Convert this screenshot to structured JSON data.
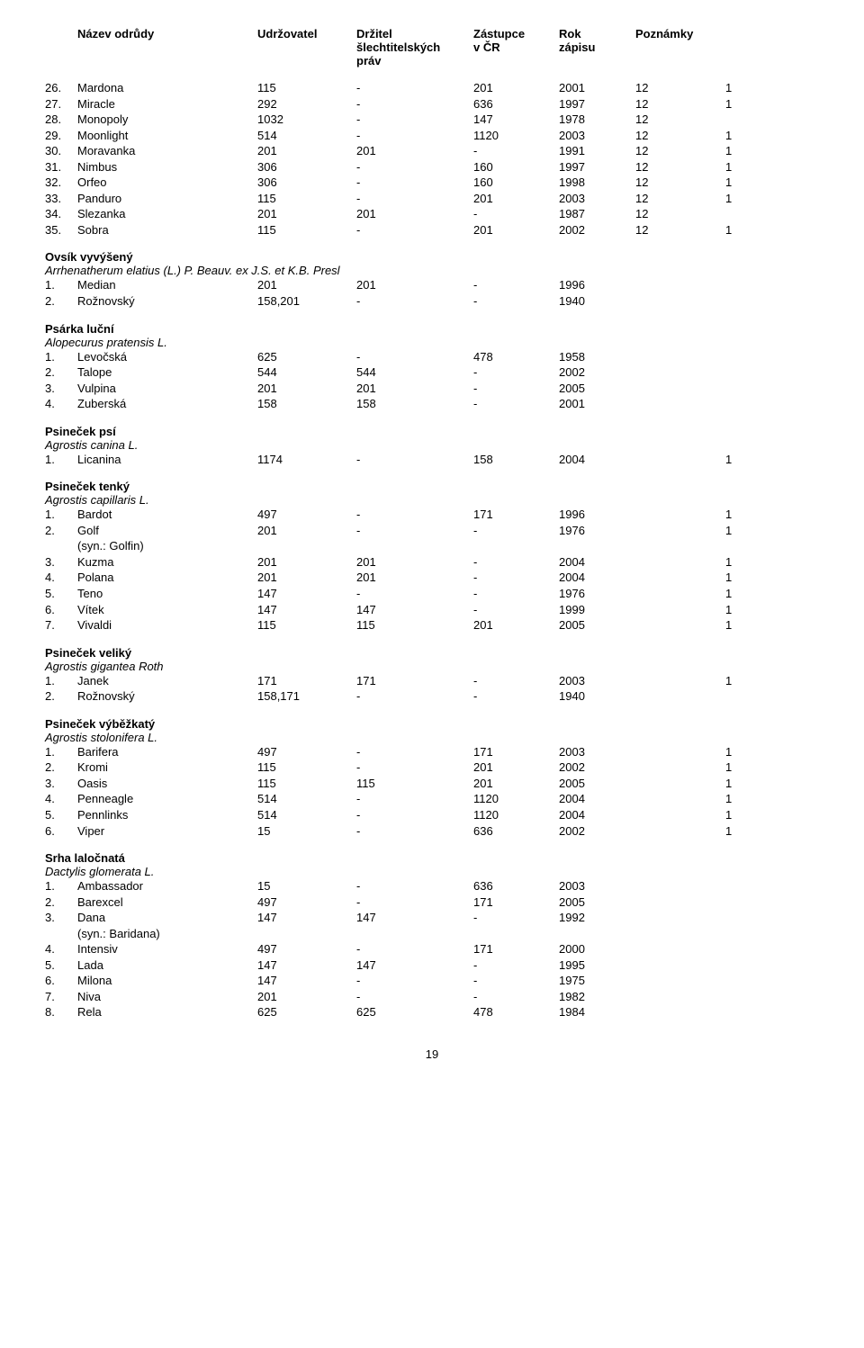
{
  "headers": {
    "name": "Název odrůdy",
    "udr": "Udržovatel",
    "drz_l1": "Držitel",
    "drz_l2": "šlechtitelských",
    "drz_l3": "práv",
    "zast_l1": "Zástupce",
    "zast_l2": "v ČR",
    "rok_l1": "Rok",
    "rok_l2": "zápisu",
    "pozn": "Poznámky"
  },
  "page_number": "19",
  "top_rows": [
    {
      "idx": "26.",
      "name": "Mardona",
      "u": "115",
      "d": "-",
      "z": "201",
      "r": "2001",
      "p": "12",
      "x": "1"
    },
    {
      "idx": "27.",
      "name": "Miracle",
      "u": "292",
      "d": "-",
      "z": "636",
      "r": "1997",
      "p": "12",
      "x": "1"
    },
    {
      "idx": "28.",
      "name": "Monopoly",
      "u": "1032",
      "d": "-",
      "z": "147",
      "r": "1978",
      "p": "12",
      "x": ""
    },
    {
      "idx": "29.",
      "name": "Moonlight",
      "u": "514",
      "d": "-",
      "z": "1120",
      "r": "2003",
      "p": "12",
      "x": "1"
    },
    {
      "idx": "30.",
      "name": "Moravanka",
      "u": "201",
      "d": "201",
      "z": "-",
      "r": "1991",
      "p": "12",
      "x": "1"
    },
    {
      "idx": "31.",
      "name": "Nimbus",
      "u": "306",
      "d": "-",
      "z": "160",
      "r": "1997",
      "p": "12",
      "x": "1"
    },
    {
      "idx": "32.",
      "name": "Orfeo",
      "u": "306",
      "d": "-",
      "z": "160",
      "r": "1998",
      "p": "12",
      "x": "1"
    },
    {
      "idx": "33.",
      "name": "Panduro",
      "u": "115",
      "d": "-",
      "z": "201",
      "r": "2003",
      "p": "12",
      "x": "1"
    },
    {
      "idx": "34.",
      "name": "Slezanka",
      "u": "201",
      "d": "201",
      "z": "-",
      "r": "1987",
      "p": "12",
      "x": ""
    },
    {
      "idx": "35.",
      "name": "Sobra",
      "u": "115",
      "d": "-",
      "z": "201",
      "r": "2002",
      "p": "12",
      "x": "1"
    }
  ],
  "sections": [
    {
      "title": "Ovsík vyvýšený",
      "sci": "Arrhenatherum elatius (L.) P. Beauv. ex J.S. et K.B. Presl",
      "rows": [
        {
          "idx": "1.",
          "name": "Median",
          "u": "201",
          "d": "201",
          "z": "-",
          "r": "1996",
          "p": "",
          "x": ""
        },
        {
          "idx": "2.",
          "name": "Rožnovský",
          "u": "158,201",
          "d": "-",
          "z": "-",
          "r": "1940",
          "p": "",
          "x": ""
        }
      ]
    },
    {
      "title": "Psárka luční",
      "sci": "Alopecurus pratensis L.",
      "rows": [
        {
          "idx": "1.",
          "name": "Levočská",
          "u": "625",
          "d": "-",
          "z": "478",
          "r": "1958",
          "p": "",
          "x": ""
        },
        {
          "idx": "2.",
          "name": "Talope",
          "u": "544",
          "d": "544",
          "z": "-",
          "r": "2002",
          "p": "",
          "x": ""
        },
        {
          "idx": "3.",
          "name": "Vulpina",
          "u": "201",
          "d": "201",
          "z": "-",
          "r": "2005",
          "p": "",
          "x": ""
        },
        {
          "idx": "4.",
          "name": "Zuberská",
          "u": "158",
          "d": "158",
          "z": "-",
          "r": "2001",
          "p": "",
          "x": ""
        }
      ]
    },
    {
      "title": "Psineček psí",
      "sci": "Agrostis canina L.",
      "rows": [
        {
          "idx": "1.",
          "name": "Licanina",
          "u": "1174",
          "d": "-",
          "z": "158",
          "r": "2004",
          "p": "",
          "x": "1"
        }
      ]
    },
    {
      "title": "Psineček tenký",
      "sci": "Agrostis capillaris L.",
      "rows": [
        {
          "idx": "1.",
          "name": "Bardot",
          "u": "497",
          "d": "-",
          "z": "171",
          "r": "1996",
          "p": "",
          "x": "1"
        },
        {
          "idx": "2.",
          "name": "Golf",
          "u": "201",
          "d": "-",
          "z": "-",
          "r": "1976",
          "p": "",
          "x": "1",
          "syn": "(syn.: Golfin)"
        },
        {
          "idx": "3.",
          "name": "Kuzma",
          "u": "201",
          "d": "201",
          "z": "-",
          "r": "2004",
          "p": "",
          "x": "1"
        },
        {
          "idx": "4.",
          "name": "Polana",
          "u": "201",
          "d": "201",
          "z": "-",
          "r": "2004",
          "p": "",
          "x": "1"
        },
        {
          "idx": "5.",
          "name": "Teno",
          "u": "147",
          "d": "-",
          "z": "-",
          "r": "1976",
          "p": "",
          "x": "1"
        },
        {
          "idx": "6.",
          "name": "Vítek",
          "u": "147",
          "d": "147",
          "z": "-",
          "r": "1999",
          "p": "",
          "x": "1"
        },
        {
          "idx": "7.",
          "name": "Vivaldi",
          "u": "115",
          "d": "115",
          "z": "201",
          "r": "2005",
          "p": "",
          "x": "1"
        }
      ]
    },
    {
      "title": "Psineček veliký",
      "sci": "Agrostis gigantea Roth",
      "rows": [
        {
          "idx": "1.",
          "name": "Janek",
          "u": "171",
          "d": "171",
          "z": "-",
          "r": "2003",
          "p": "",
          "x": "1"
        },
        {
          "idx": "2.",
          "name": "Rožnovský",
          "u": "158,171",
          "d": "-",
          "z": "-",
          "r": "1940",
          "p": "",
          "x": ""
        }
      ]
    },
    {
      "title": "Psineček výběžkatý",
      "sci": "Agrostis stolonifera L.",
      "rows": [
        {
          "idx": "1.",
          "name": "Barifera",
          "u": "497",
          "d": "-",
          "z": "171",
          "r": "2003",
          "p": "",
          "x": "1"
        },
        {
          "idx": "2.",
          "name": "Kromi",
          "u": "115",
          "d": "-",
          "z": "201",
          "r": "2002",
          "p": "",
          "x": "1"
        },
        {
          "idx": "3.",
          "name": "Oasis",
          "u": "115",
          "d": "115",
          "z": "201",
          "r": "2005",
          "p": "",
          "x": "1"
        },
        {
          "idx": "4.",
          "name": "Penneagle",
          "u": "514",
          "d": "-",
          "z": "1120",
          "r": "2004",
          "p": "",
          "x": "1"
        },
        {
          "idx": "5.",
          "name": "Pennlinks",
          "u": "514",
          "d": "-",
          "z": "1120",
          "r": "2004",
          "p": "",
          "x": "1"
        },
        {
          "idx": "6.",
          "name": "Viper",
          "u": "15",
          "d": "-",
          "z": "636",
          "r": "2002",
          "p": "",
          "x": "1"
        }
      ]
    },
    {
      "title": "Srha laločnatá",
      "sci": "Dactylis glomerata L.",
      "rows": [
        {
          "idx": "1.",
          "name": "Ambassador",
          "u": "15",
          "d": "-",
          "z": "636",
          "r": "2003",
          "p": "",
          "x": ""
        },
        {
          "idx": "2.",
          "name": "Barexcel",
          "u": "497",
          "d": "-",
          "z": "171",
          "r": "2005",
          "p": "",
          "x": ""
        },
        {
          "idx": "3.",
          "name": "Dana",
          "u": "147",
          "d": "147",
          "z": "-",
          "r": "1992",
          "p": "",
          "x": "",
          "syn": "(syn.: Baridana)"
        },
        {
          "idx": "4.",
          "name": "Intensiv",
          "u": "497",
          "d": "-",
          "z": "171",
          "r": "2000",
          "p": "",
          "x": ""
        },
        {
          "idx": "5.",
          "name": "Lada",
          "u": "147",
          "d": "147",
          "z": "-",
          "r": "1995",
          "p": "",
          "x": ""
        },
        {
          "idx": "6.",
          "name": "Milona",
          "u": "147",
          "d": "-",
          "z": "-",
          "r": "1975",
          "p": "",
          "x": ""
        },
        {
          "idx": "7.",
          "name": "Niva",
          "u": "201",
          "d": "-",
          "z": "-",
          "r": "1982",
          "p": "",
          "x": ""
        },
        {
          "idx": "8.",
          "name": "Rela",
          "u": "625",
          "d": "625",
          "z": "478",
          "r": "1984",
          "p": "",
          "x": ""
        }
      ]
    }
  ]
}
